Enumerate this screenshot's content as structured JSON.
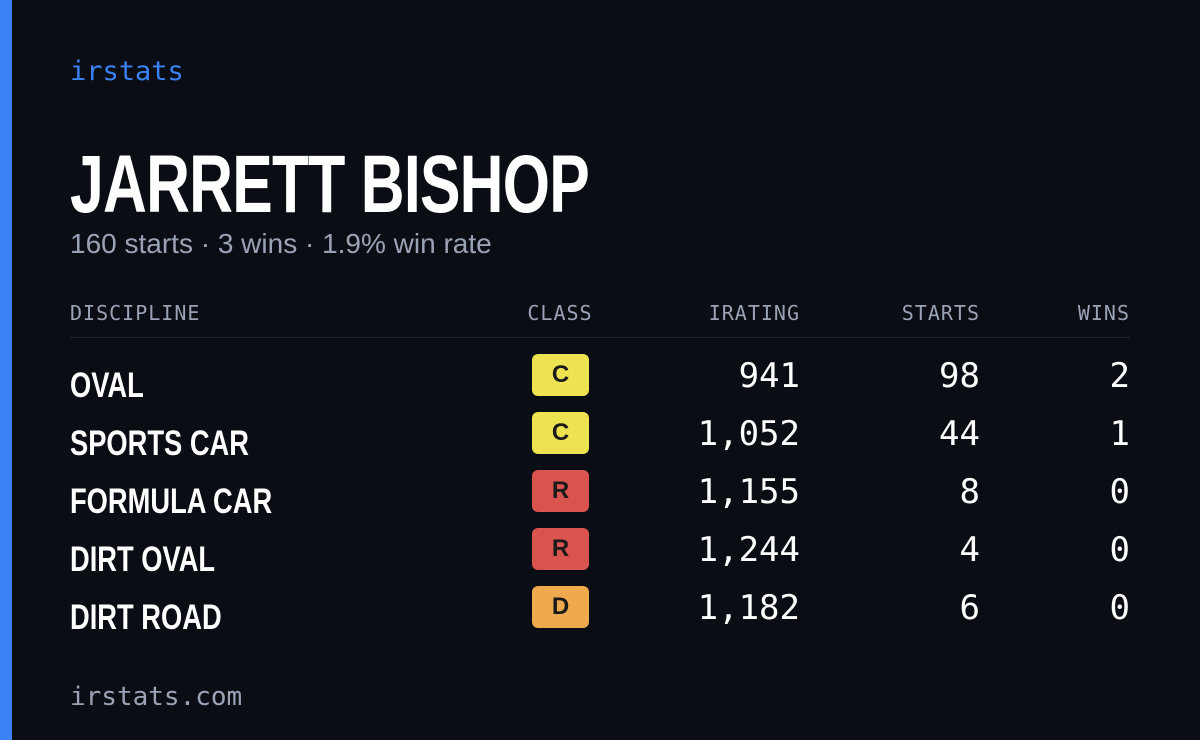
{
  "brand": "irstats",
  "driver": {
    "name": "JARRETT BISHOP",
    "summary": "160 starts · 3 wins · 1.9% win rate"
  },
  "table": {
    "headers": [
      "DISCIPLINE",
      "CLASS",
      "IRATING",
      "STARTS",
      "WINS"
    ],
    "rows": [
      {
        "discipline": "OVAL",
        "class": "C",
        "class_color": "#ede24f",
        "irating": "941",
        "starts": 98,
        "wins": 2
      },
      {
        "discipline": "SPORTS CAR",
        "class": "C",
        "class_color": "#ede24f",
        "irating": "1,052",
        "starts": 44,
        "wins": 1
      },
      {
        "discipline": "FORMULA CAR",
        "class": "R",
        "class_color": "#d9534f",
        "irating": "1,155",
        "starts": 8,
        "wins": 0
      },
      {
        "discipline": "DIRT OVAL",
        "class": "R",
        "class_color": "#d9534f",
        "irating": "1,244",
        "starts": 4,
        "wins": 0
      },
      {
        "discipline": "DIRT ROAD",
        "class": "D",
        "class_color": "#eeaa4d",
        "irating": "1,182",
        "starts": 6,
        "wins": 0
      }
    ]
  },
  "footer": "irstats.com"
}
